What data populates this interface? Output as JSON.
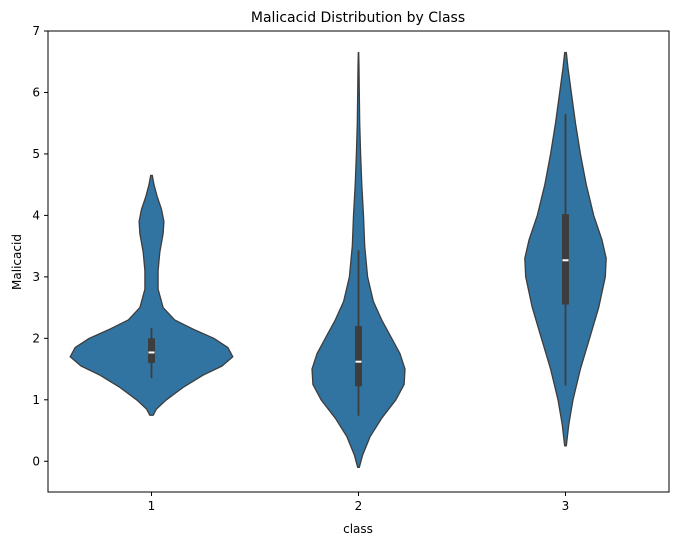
{
  "chart_data": {
    "type": "violin",
    "title": "Malicacid Distribution by Class",
    "xlabel": "class",
    "ylabel": "Malicacid",
    "categories": [
      "1",
      "2",
      "3"
    ],
    "ylim": [
      -0.5,
      7
    ],
    "yticks": [
      0,
      1,
      2,
      3,
      4,
      5,
      6,
      7
    ],
    "grid": false,
    "color": "#3274a1",
    "edge_color": "#3d3d3d",
    "violins": [
      {
        "category": "1",
        "q1": 1.6,
        "median": 1.77,
        "q3": 2.0,
        "whisker_low": 1.35,
        "whisker_high": 2.17,
        "profile": [
          [
            0.75,
            0.02
          ],
          [
            0.85,
            0.06
          ],
          [
            1.0,
            0.18
          ],
          [
            1.2,
            0.38
          ],
          [
            1.4,
            0.62
          ],
          [
            1.55,
            0.85
          ],
          [
            1.7,
            0.98
          ],
          [
            1.85,
            0.92
          ],
          [
            2.0,
            0.75
          ],
          [
            2.15,
            0.5
          ],
          [
            2.3,
            0.28
          ],
          [
            2.5,
            0.14
          ],
          [
            2.8,
            0.08
          ],
          [
            3.1,
            0.08
          ],
          [
            3.4,
            0.1
          ],
          [
            3.7,
            0.14
          ],
          [
            3.9,
            0.15
          ],
          [
            4.1,
            0.12
          ],
          [
            4.3,
            0.07
          ],
          [
            4.5,
            0.03
          ],
          [
            4.65,
            0.01
          ]
        ]
      },
      {
        "category": "2",
        "q1": 1.22,
        "median": 1.62,
        "q3": 2.2,
        "whisker_low": 0.74,
        "whisker_high": 3.43,
        "profile": [
          [
            -0.1,
            0.01
          ],
          [
            0.1,
            0.05
          ],
          [
            0.4,
            0.14
          ],
          [
            0.7,
            0.28
          ],
          [
            1.0,
            0.45
          ],
          [
            1.25,
            0.55
          ],
          [
            1.5,
            0.56
          ],
          [
            1.75,
            0.5
          ],
          [
            2.0,
            0.4
          ],
          [
            2.3,
            0.28
          ],
          [
            2.6,
            0.18
          ],
          [
            3.0,
            0.11
          ],
          [
            3.5,
            0.075
          ],
          [
            4.0,
            0.06
          ],
          [
            4.5,
            0.04
          ],
          [
            5.0,
            0.025
          ],
          [
            5.5,
            0.015
          ],
          [
            6.0,
            0.01
          ],
          [
            6.4,
            0.006
          ],
          [
            6.65,
            0.003
          ]
        ]
      },
      {
        "category": "3",
        "q1": 2.55,
        "median": 3.27,
        "q3": 4.02,
        "whisker_low": 1.23,
        "whisker_high": 5.65,
        "profile": [
          [
            0.25,
            0.01
          ],
          [
            0.6,
            0.04
          ],
          [
            1.0,
            0.09
          ],
          [
            1.5,
            0.18
          ],
          [
            2.0,
            0.29
          ],
          [
            2.5,
            0.4
          ],
          [
            3.0,
            0.48
          ],
          [
            3.3,
            0.49
          ],
          [
            3.6,
            0.44
          ],
          [
            4.0,
            0.34
          ],
          [
            4.5,
            0.25
          ],
          [
            5.0,
            0.18
          ],
          [
            5.5,
            0.12
          ],
          [
            6.0,
            0.07
          ],
          [
            6.4,
            0.03
          ],
          [
            6.65,
            0.01
          ]
        ]
      }
    ]
  }
}
